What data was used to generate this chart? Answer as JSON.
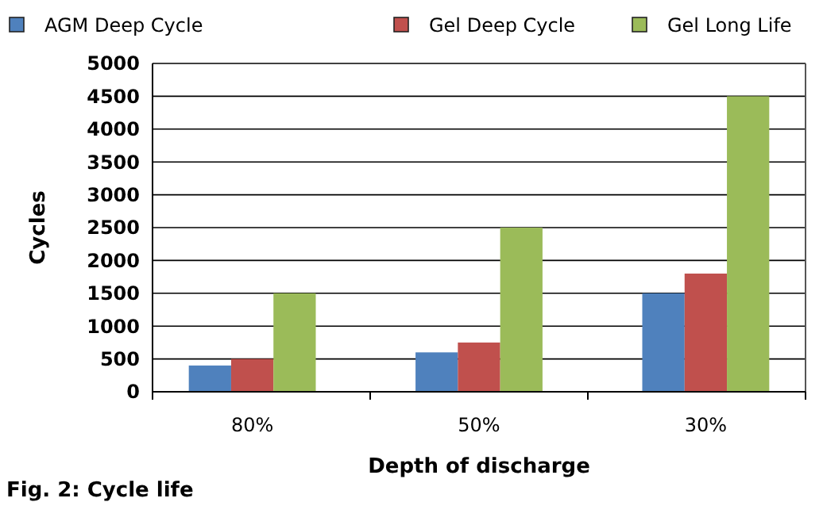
{
  "chart_data": {
    "type": "bar",
    "xlabel": "Depth of discharge",
    "ylabel": "Cycles",
    "categories": [
      "80%",
      "50%",
      "30%"
    ],
    "series": [
      {
        "name": "AGM Deep Cycle",
        "color": "#4f81bd",
        "values": [
          400,
          600,
          1500
        ]
      },
      {
        "name": "Gel Deep Cycle",
        "color": "#c0504d",
        "values": [
          500,
          750,
          1800
        ]
      },
      {
        "name": "Gel Long Life",
        "color": "#9bbb59",
        "values": [
          1500,
          2500,
          4500
        ]
      }
    ],
    "ylim": [
      0,
      5000
    ],
    "yticks": [
      0,
      500,
      1000,
      1500,
      2000,
      2500,
      3000,
      3500,
      4000,
      4500,
      5000
    ],
    "grid": "y",
    "legend": "top",
    "annotations": [
      "Fig. 2: Cycle life"
    ]
  }
}
